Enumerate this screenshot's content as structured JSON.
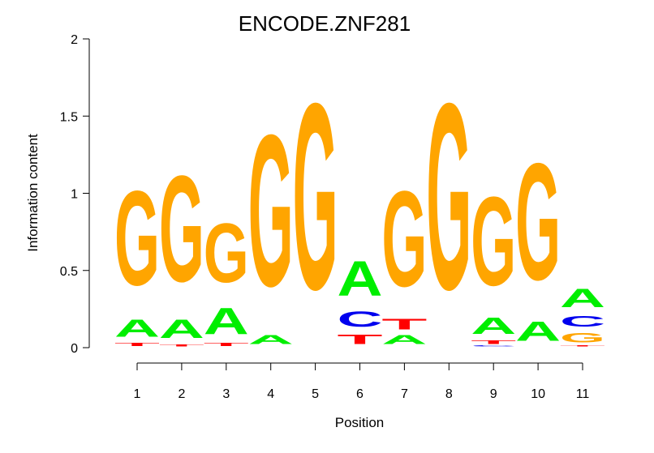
{
  "chart_data": {
    "type": "sequence-logo",
    "title": "ENCODE.ZNF281",
    "xlabel": "Position",
    "ylabel": "Information content",
    "ylim": [
      0,
      2
    ],
    "yticks": [
      "0",
      "0.5",
      "1",
      "1.5",
      "2"
    ],
    "positions": [
      "1",
      "2",
      "3",
      "4",
      "5",
      "6",
      "7",
      "8",
      "9",
      "10",
      "11"
    ],
    "colors": {
      "A": "#00ee00",
      "C": "#0000ee",
      "G": "#ffa500",
      "T": "#ff0000"
    },
    "columns": [
      [
        {
          "base": "T",
          "h": 0.03
        },
        {
          "base": "A",
          "h": 0.18
        },
        {
          "base": "G",
          "h": 0.98
        }
      ],
      [
        {
          "base": "T",
          "h": 0.02
        },
        {
          "base": "A",
          "h": 0.19
        },
        {
          "base": "G",
          "h": 1.1
        }
      ],
      [
        {
          "base": "T",
          "h": 0.03
        },
        {
          "base": "A",
          "h": 0.27
        },
        {
          "base": "G",
          "h": 0.61
        }
      ],
      [
        {
          "base": "A",
          "h": 0.09
        },
        {
          "base": "G",
          "h": 1.57
        }
      ],
      [
        {
          "base": "G",
          "h": 1.93
        }
      ],
      [
        {
          "base": "T",
          "h": 0.1
        },
        {
          "base": "C",
          "h": 0.16
        },
        {
          "base": "A",
          "h": 0.36
        }
      ],
      [
        {
          "base": "A",
          "h": 0.09
        },
        {
          "base": "T",
          "h": 0.11
        },
        {
          "base": "G",
          "h": 0.99
        }
      ],
      [
        {
          "base": "G",
          "h": 1.93
        }
      ],
      [
        {
          "base": "C",
          "h": 0.01
        },
        {
          "base": "T",
          "h": 0.04
        },
        {
          "base": "A",
          "h": 0.17
        },
        {
          "base": "G",
          "h": 0.92
        }
      ],
      [
        {
          "base": "A",
          "h": 0.2
        },
        {
          "base": "G",
          "h": 1.21
        }
      ],
      [
        {
          "base": "T",
          "h": 0.01
        },
        {
          "base": "G",
          "h": 0.1
        },
        {
          "base": "C",
          "h": 0.11
        },
        {
          "base": "A",
          "h": 0.19
        }
      ]
    ]
  }
}
